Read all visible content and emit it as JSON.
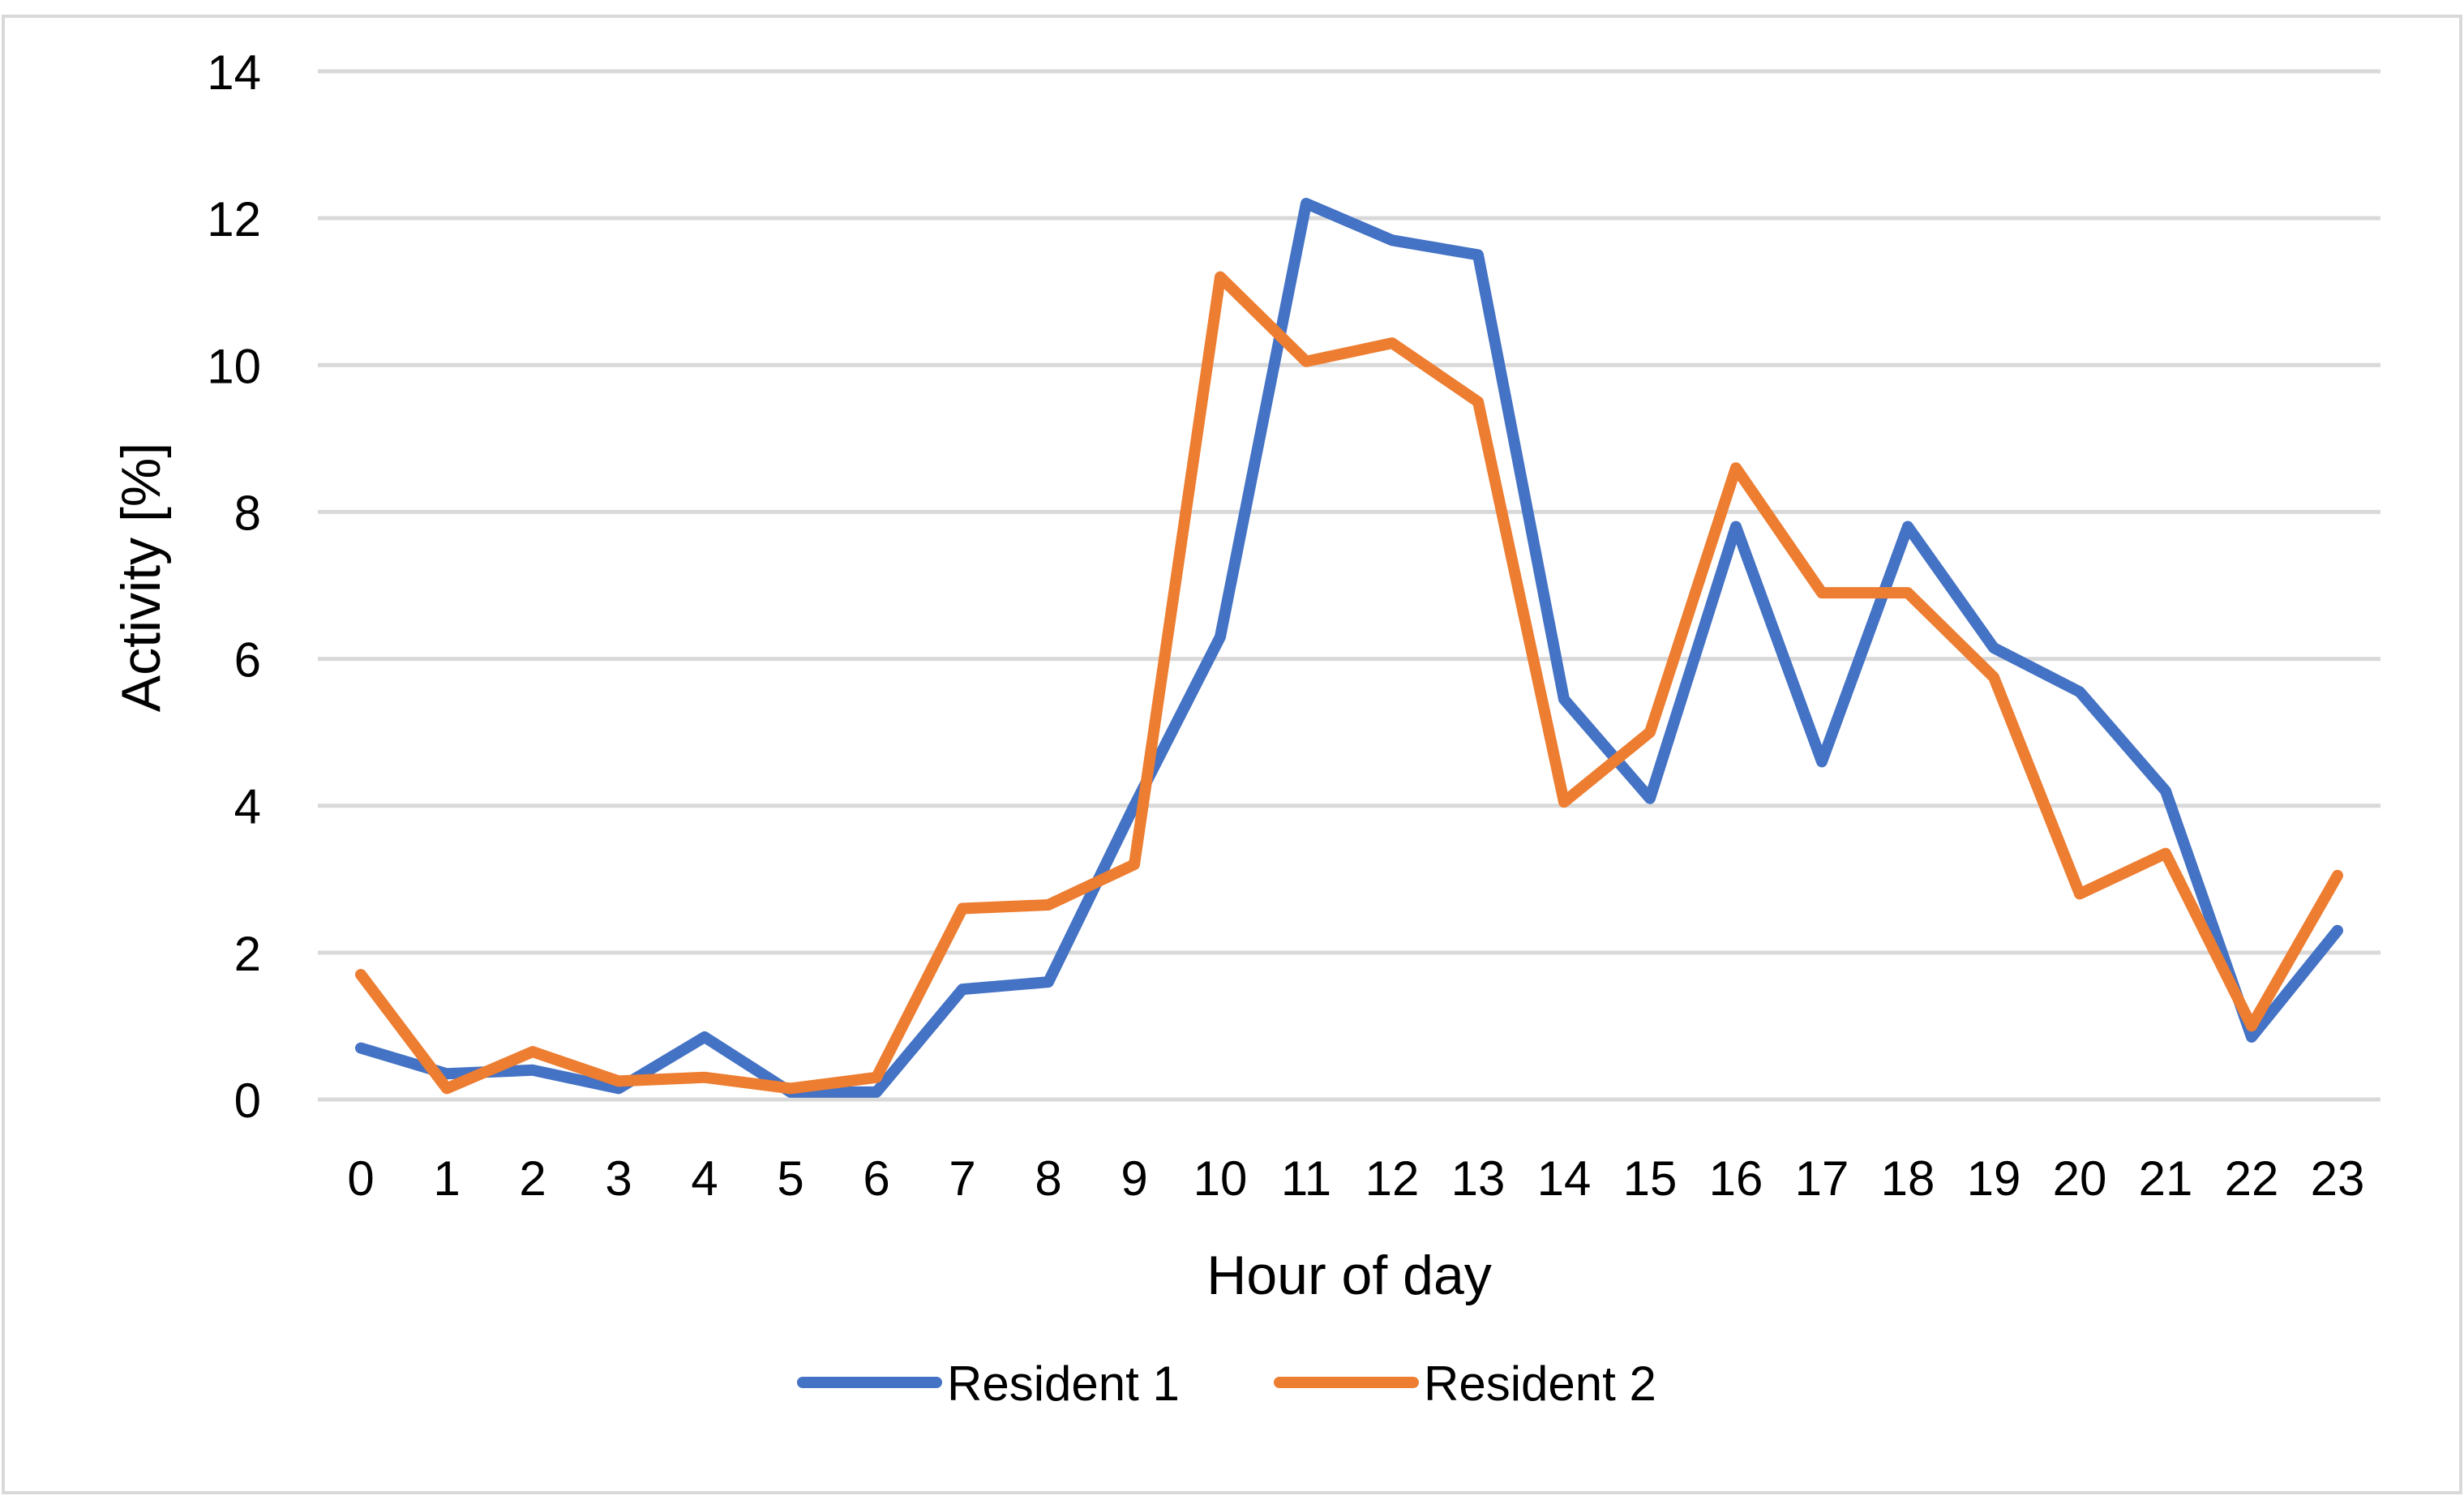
{
  "chart_data": {
    "type": "line",
    "title": "",
    "xlabel": "Hour of day",
    "ylabel": "Activity [%]",
    "x": [
      "0",
      "1",
      "2",
      "3",
      "4",
      "5",
      "6",
      "7",
      "8",
      "9",
      "10",
      "11",
      "12",
      "13",
      "14",
      "15",
      "16",
      "17",
      "18",
      "19",
      "20",
      "21",
      "22",
      "23"
    ],
    "ylim": [
      0,
      14
    ],
    "yticks": [
      "0",
      "2",
      "4",
      "6",
      "8",
      "10",
      "12",
      "14"
    ],
    "grid": "horizontal",
    "legend_position": "bottom-center",
    "series": [
      {
        "name": "Resident 1",
        "color": "#4472C4",
        "values": [
          0.7,
          0.35,
          0.4,
          0.15,
          0.85,
          0.1,
          0.1,
          1.5,
          1.6,
          4.0,
          6.3,
          12.2,
          11.7,
          11.5,
          5.45,
          4.1,
          7.8,
          4.6,
          7.8,
          6.15,
          5.55,
          4.2,
          0.85,
          2.3
        ]
      },
      {
        "name": "Resident 2",
        "color": "#ED7D31",
        "values": [
          1.7,
          0.15,
          0.65,
          0.25,
          0.3,
          0.15,
          0.3,
          2.6,
          2.65,
          3.2,
          11.2,
          10.05,
          10.3,
          9.5,
          4.05,
          5.0,
          8.6,
          6.9,
          6.9,
          5.75,
          2.8,
          3.35,
          1.0,
          3.05
        ]
      }
    ]
  }
}
